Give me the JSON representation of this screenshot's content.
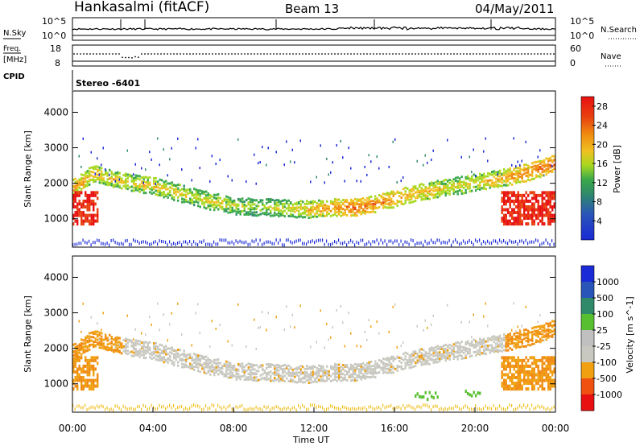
{
  "header": {
    "station": "Hankasalmi (fitACF)",
    "beam": "Beam 13",
    "date": "04/May/2011"
  },
  "noise_panel": {
    "left_label": "N.Sky",
    "left_ticks": [
      "10^5",
      "10^0"
    ],
    "right_label": "N.Search",
    "right_ticks": [
      "10^5",
      "10^0"
    ]
  },
  "freq_panel": {
    "left_label_line1": "Freq.",
    "left_label_line2": "[MHz]",
    "left_ticks": [
      "18",
      "8"
    ],
    "right_label": "Nave",
    "right_ticks": [
      "60",
      "0"
    ],
    "cpid_label": "CPID",
    "mode": "Stereo -6401"
  },
  "time_axis": {
    "label": "Time UT",
    "ticks": [
      "00:00",
      "04:00",
      "08:00",
      "12:00",
      "16:00",
      "20:00",
      "00:00"
    ]
  },
  "colors": {
    "power_scale": [
      "#1a2ad6",
      "#2a55b8",
      "#2f8a6a",
      "#3aa84a",
      "#a8d820",
      "#f0c020",
      "#f08a10",
      "#e84010",
      "#e81010"
    ],
    "velocity_scale": [
      "#e81010",
      "#f05010",
      "#f0a010",
      "#c8c8c0",
      "#c0c0c0",
      "#58c030",
      "#2f8a6a",
      "#2a55b8",
      "#1a2ad6"
    ]
  },
  "chart_data": [
    {
      "type": "heatmap",
      "title": "Power",
      "xlabel": "Time UT",
      "ylabel": "Slant Range [km]",
      "yticks": [
        "1000",
        "2000",
        "3000",
        "4000"
      ],
      "ylim": [
        200,
        4600
      ],
      "xlim_hours": [
        0,
        24
      ],
      "colorbar": {
        "label": "Power [dB]",
        "ticks": [
          "4",
          "8",
          "12",
          "16",
          "20",
          "24",
          "28"
        ],
        "range": [
          0,
          30
        ]
      },
      "main_band": [
        {
          "t": 0.0,
          "range": 1900,
          "power": 20
        },
        {
          "t": 1.0,
          "range": 2300,
          "power": 18
        },
        {
          "t": 2.0,
          "range": 2150,
          "power": 17
        },
        {
          "t": 3.0,
          "range": 2050,
          "power": 16
        },
        {
          "t": 4.0,
          "range": 1950,
          "power": 17
        },
        {
          "t": 5.0,
          "range": 1800,
          "power": 16
        },
        {
          "t": 6.0,
          "range": 1650,
          "power": 15
        },
        {
          "t": 7.0,
          "range": 1500,
          "power": 16
        },
        {
          "t": 8.0,
          "range": 1400,
          "power": 14
        },
        {
          "t": 9.0,
          "range": 1350,
          "power": 13
        },
        {
          "t": 10.0,
          "range": 1350,
          "power": 14
        },
        {
          "t": 11.0,
          "range": 1300,
          "power": 16
        },
        {
          "t": 12.0,
          "range": 1300,
          "power": 18
        },
        {
          "t": 13.0,
          "range": 1350,
          "power": 20
        },
        {
          "t": 14.0,
          "range": 1350,
          "power": 22
        },
        {
          "t": 15.0,
          "range": 1450,
          "power": 21
        },
        {
          "t": 16.0,
          "range": 1600,
          "power": 20
        },
        {
          "t": 17.0,
          "range": 1750,
          "power": 19
        },
        {
          "t": 18.0,
          "range": 1850,
          "power": 17
        },
        {
          "t": 19.0,
          "range": 1950,
          "power": 15
        },
        {
          "t": 20.0,
          "range": 2050,
          "power": 16
        },
        {
          "t": 21.0,
          "range": 2150,
          "power": 18
        },
        {
          "t": 22.0,
          "range": 2250,
          "power": 20
        },
        {
          "t": 23.0,
          "range": 2400,
          "power": 22
        },
        {
          "t": 24.0,
          "range": 2600,
          "power": 24
        }
      ]
    },
    {
      "type": "heatmap",
      "title": "Velocity",
      "xlabel": "Time UT",
      "ylabel": "Slant Range [km]",
      "yticks": [
        "1000",
        "2000",
        "3000",
        "4000"
      ],
      "ylim": [
        200,
        4600
      ],
      "xlim_hours": [
        0,
        24
      ],
      "colorbar": {
        "label": "Velocity [m s^-1]",
        "ticks": [
          "1000",
          "500",
          "100",
          "25",
          "-25",
          "-100",
          "-500",
          "-1000"
        ]
      }
    }
  ]
}
